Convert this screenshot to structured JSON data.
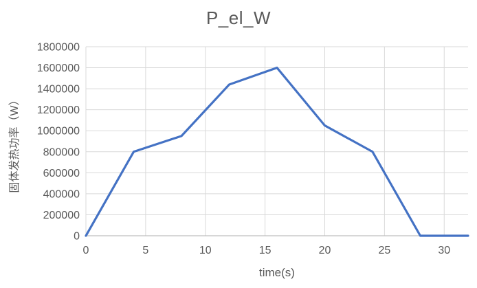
{
  "page": {
    "background": "#ffffff"
  },
  "chart_data": {
    "type": "line",
    "title": "P_el_W",
    "xlabel": "time(s)",
    "ylabel": "固体发热功率（W）",
    "x": [
      0,
      4,
      8,
      12,
      16,
      20,
      24,
      28,
      32
    ],
    "series": [
      {
        "name": "P_el_W",
        "values": [
          0,
          800000,
          950000,
          1440000,
          1600000,
          1050000,
          800000,
          0,
          0
        ]
      }
    ],
    "xlim": [
      0,
      32
    ],
    "ylim": [
      0,
      1800000
    ],
    "x_ticks": [
      0,
      5,
      10,
      15,
      20,
      25,
      30
    ],
    "y_ticks": [
      0,
      200000,
      400000,
      600000,
      800000,
      1000000,
      1200000,
      1400000,
      1600000,
      1800000
    ],
    "grid": true,
    "legend": "none",
    "colors": {
      "line": "#4472C4",
      "gridline": "#D9D9D9",
      "axis": "#BFBFBF",
      "text": "#595959"
    }
  }
}
